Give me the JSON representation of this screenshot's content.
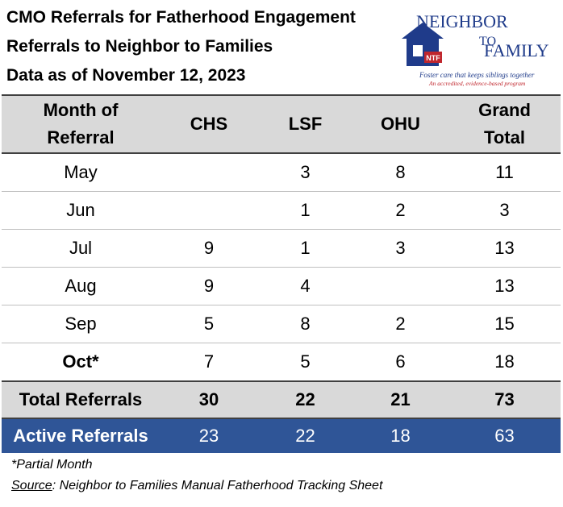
{
  "header": {
    "lines": [
      "CMO Referrals for Fatherhood Engagement",
      "Referrals to Neighbor to Families",
      "Data as of November 12, 2023"
    ]
  },
  "logo": {
    "word1": "NEIGHBOR",
    "word2": "TO",
    "word3": "FAMILY",
    "badge": "NTF",
    "tagline": "Foster care that keeps siblings together",
    "subtagline": "An accredited, evidence-based program"
  },
  "table": {
    "columns": [
      "Month of Referral",
      "CHS",
      "LSF",
      "OHU",
      "Grand Total"
    ],
    "rows": [
      [
        "May",
        null,
        3,
        8,
        11
      ],
      [
        "Jun",
        null,
        1,
        2,
        3
      ],
      [
        "Jul",
        9,
        1,
        3,
        13
      ],
      [
        "Aug",
        9,
        4,
        null,
        13
      ],
      [
        "Sep",
        5,
        8,
        2,
        15
      ],
      [
        "Oct*",
        7,
        5,
        6,
        18
      ]
    ],
    "total": [
      "Total Referrals",
      30,
      22,
      21,
      73
    ],
    "active": [
      "Active Referrals",
      23,
      22,
      18,
      63
    ]
  },
  "notes": {
    "partial": "*Partial Month",
    "source_label": "Source",
    "source_text": ": Neighbor to Families Manual Fatherhood Tracking Sheet"
  }
}
